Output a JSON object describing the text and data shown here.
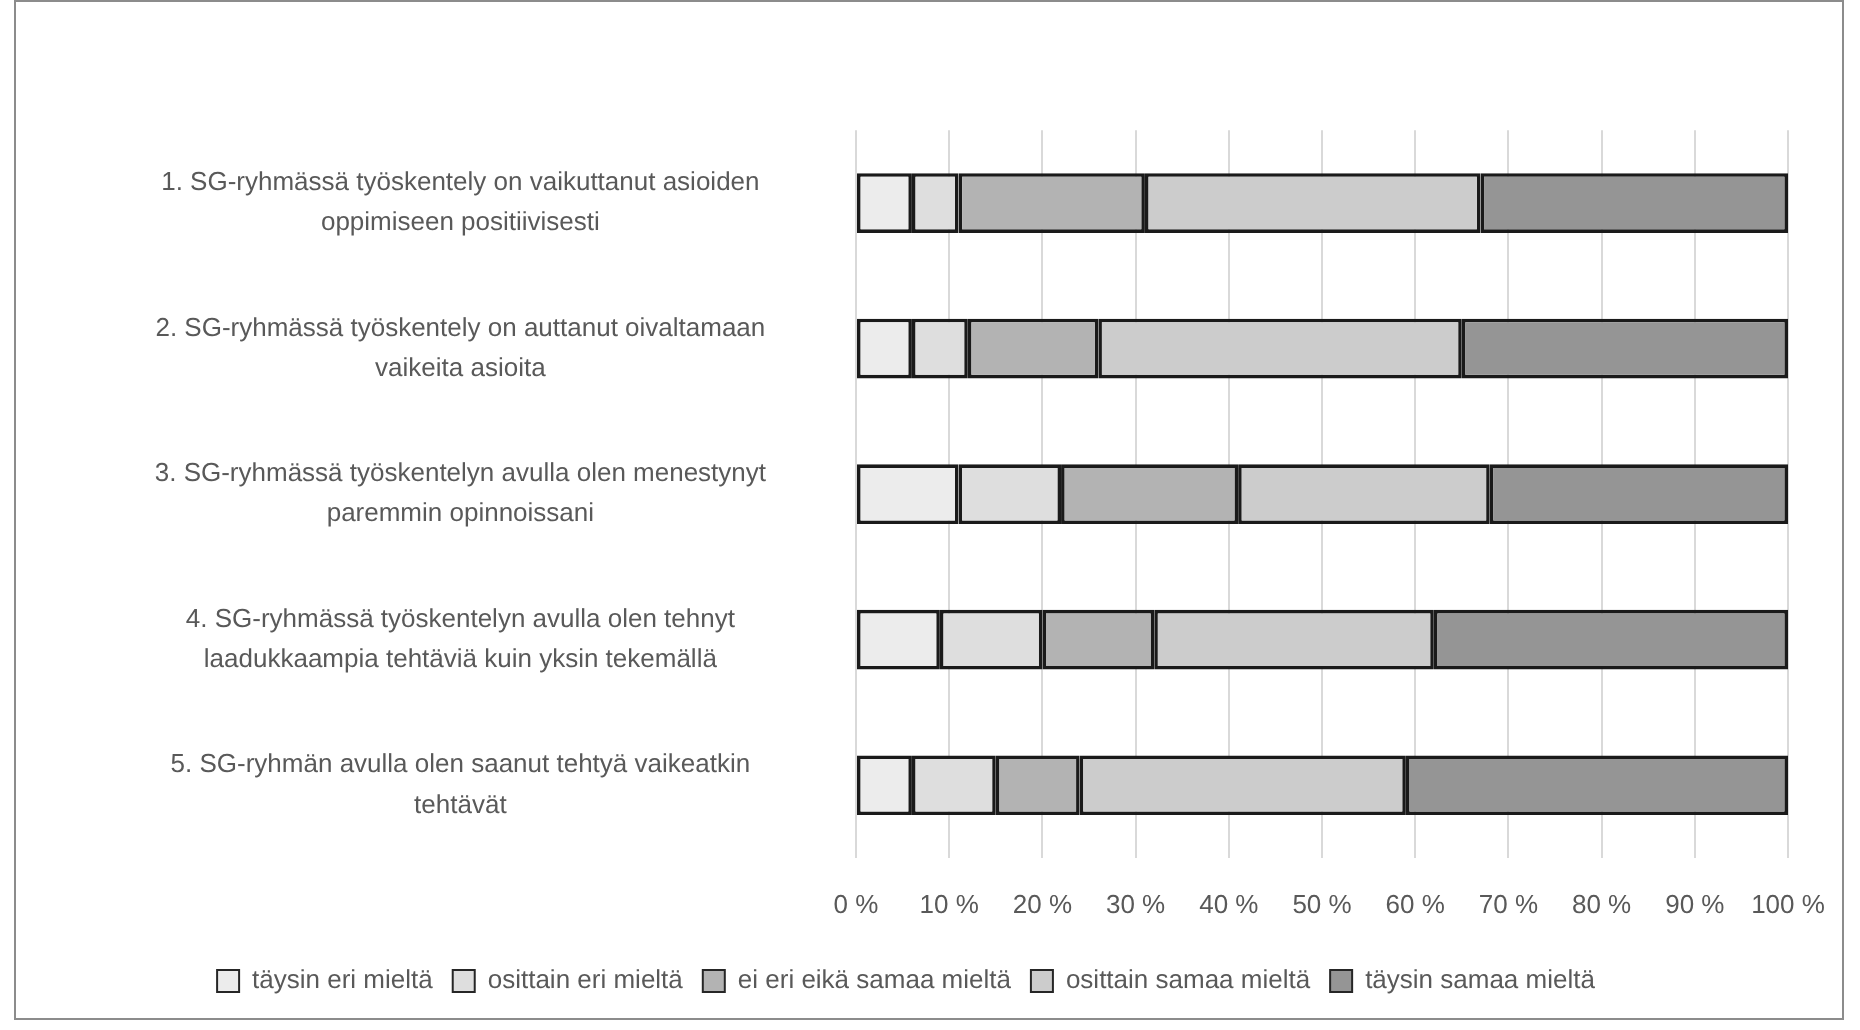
{
  "chart_data": {
    "type": "bar",
    "orientation": "horizontal",
    "stacked": true,
    "categories": [
      "1. SG-ryhmässä työskentely on vaikuttanut asioiden oppimiseen positiivisesti",
      "2. SG-ryhmässä työskentely on auttanut oivaltamaan vaikeita asioita",
      "3. SG-ryhmässä työskentelyn avulla olen menestynyt paremmin opinnoissani",
      "4. SG-ryhmässä työskentelyn avulla olen tehnyt laadukkaampia tehtäviä kuin yksin tekemällä",
      "5. SG-ryhmän avulla olen saanut tehtyä vaikeatkin tehtävät"
    ],
    "series": [
      {
        "name": "täysin eri mieltä",
        "color": "#ececec",
        "values": [
          6,
          6,
          11,
          9,
          6
        ]
      },
      {
        "name": "osittain eri mieltä",
        "color": "#dedede",
        "values": [
          5,
          6,
          11,
          11,
          9
        ]
      },
      {
        "name": "ei eri eikä samaa mieltä",
        "color": "#b3b3b3",
        "values": [
          20,
          14,
          19,
          12,
          9
        ]
      },
      {
        "name": "osittain samaa mieltä",
        "color": "#cccccc",
        "values": [
          36,
          39,
          27,
          30,
          35
        ]
      },
      {
        "name": "täysin samaa mieltä",
        "color": "#959595",
        "values": [
          33,
          35,
          32,
          38,
          41
        ]
      }
    ],
    "xlim": [
      0,
      100
    ],
    "xticks": [
      {
        "value": 0,
        "label": "0 %"
      },
      {
        "value": 10,
        "label": "10 %"
      },
      {
        "value": 20,
        "label": "20 %"
      },
      {
        "value": 30,
        "label": "30 %"
      },
      {
        "value": 40,
        "label": "40 %"
      },
      {
        "value": 50,
        "label": "50 %"
      },
      {
        "value": 60,
        "label": "60 %"
      },
      {
        "value": 70,
        "label": "70 %"
      },
      {
        "value": 80,
        "label": "80 %"
      },
      {
        "value": 90,
        "label": "90 %"
      },
      {
        "value": 100,
        "label": "100 %"
      }
    ],
    "grid": "x",
    "legend": "bottom"
  }
}
